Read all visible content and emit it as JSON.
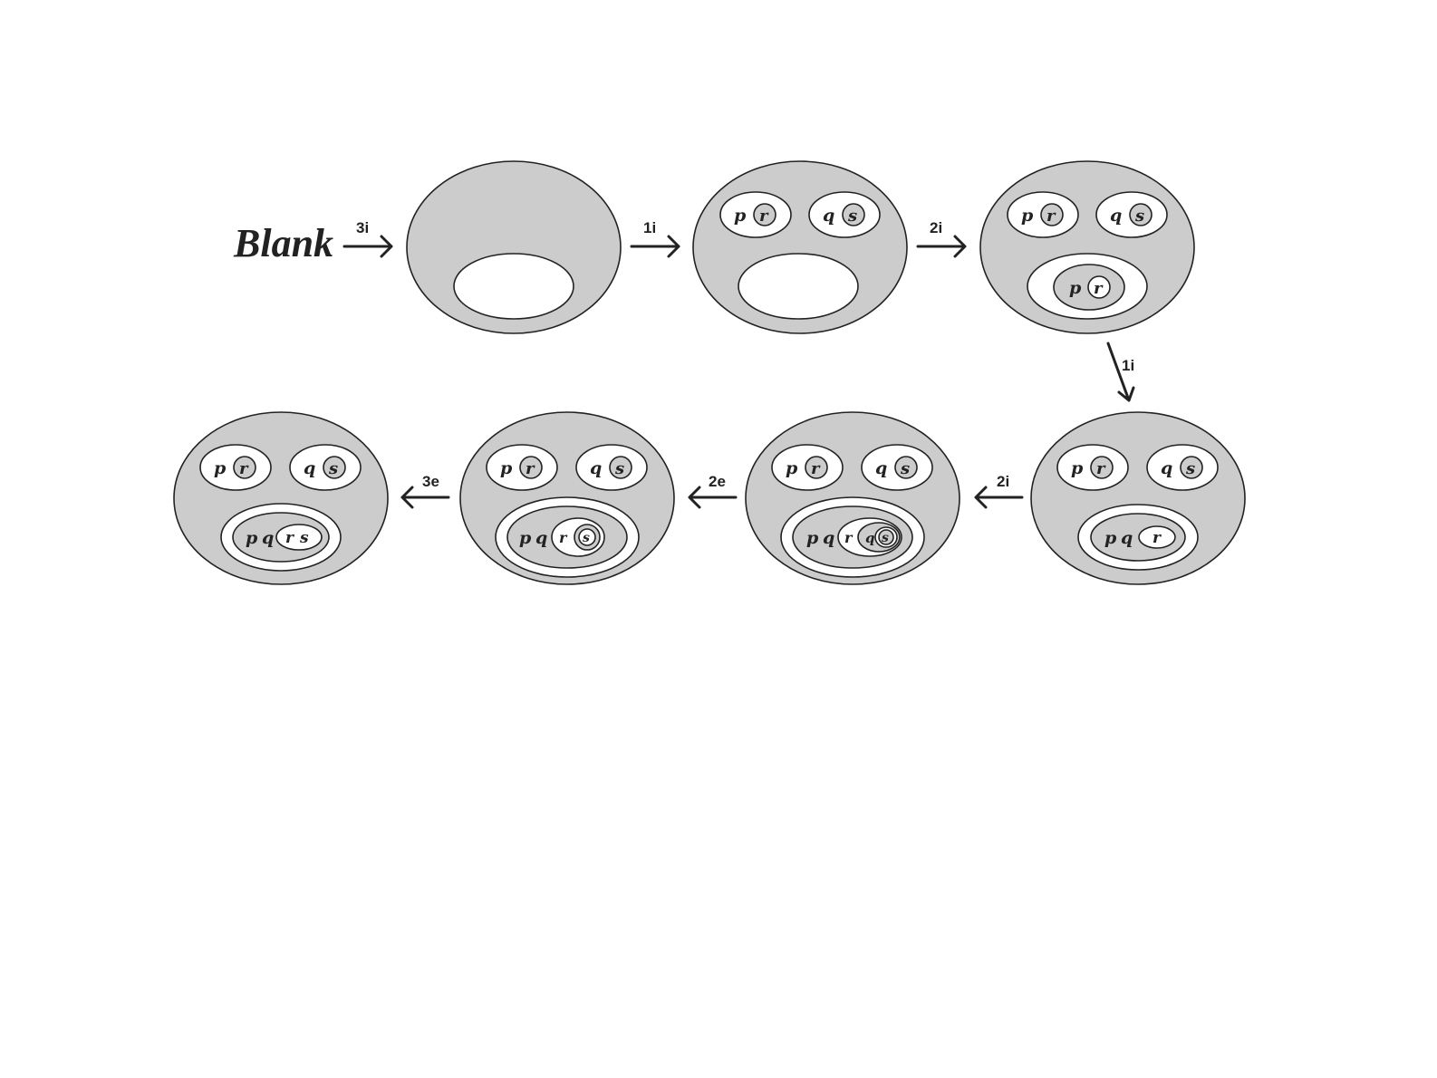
{
  "start_label": "Blank",
  "steps": [
    "3i",
    "1i",
    "2i",
    "1i",
    "2i",
    "2e",
    "3e"
  ],
  "vars": {
    "p": "p",
    "q": "q",
    "r": "r",
    "s": "s"
  },
  "colors": {
    "shaded": "#cccccc",
    "unshaded": "#ffffff",
    "ink": "#222222"
  }
}
